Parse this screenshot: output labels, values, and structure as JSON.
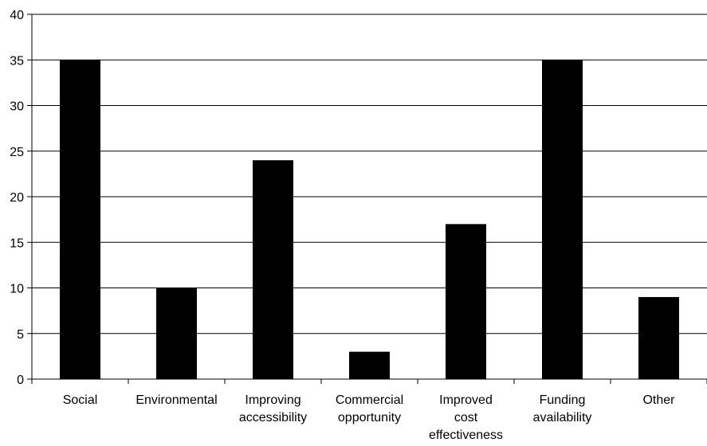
{
  "chart_data": {
    "type": "bar",
    "categories": [
      [
        "Social"
      ],
      [
        "Environmental"
      ],
      [
        "Improving",
        "accessibility"
      ],
      [
        "Commercial",
        "opportunity"
      ],
      [
        "Improved",
        "cost",
        "effectiveness"
      ],
      [
        "Funding",
        "availability"
      ],
      [
        "Other"
      ]
    ],
    "values": [
      35,
      10,
      24,
      3,
      17,
      35,
      9
    ],
    "ylim": [
      0,
      40
    ],
    "yticks": [
      "0",
      "5",
      "10",
      "15",
      "20",
      "25",
      "30",
      "35",
      "40"
    ],
    "grid": true,
    "bar_color": "#000000",
    "grid_color": "#000000"
  }
}
